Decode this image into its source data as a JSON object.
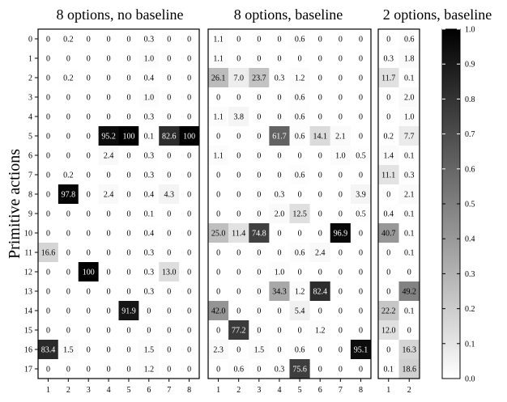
{
  "chart_data": {
    "type": "heatmap",
    "ylabel": "Primitive actions",
    "row_labels": [
      "0",
      "1",
      "2",
      "3",
      "4",
      "5",
      "6",
      "7",
      "8",
      "9",
      "10",
      "11",
      "12",
      "13",
      "14",
      "15",
      "16",
      "17"
    ],
    "colorbar": {
      "min": 0.0,
      "max": 1.0,
      "ticks": [
        "0.0",
        "0.1",
        "0.2",
        "0.3",
        "0.4",
        "0.5",
        "0.6",
        "0.7",
        "0.8",
        "0.9",
        "1.0"
      ],
      "colormap": "white-to-black"
    },
    "panels": [
      {
        "title": "8 options, no baseline",
        "columns": [
          "1",
          "2",
          "3",
          "4",
          "5",
          "6",
          "7",
          "8"
        ],
        "values": [
          [
            "0",
            "0.2",
            "0",
            "0",
            "0",
            "0.3",
            "0",
            "0"
          ],
          [
            "0",
            "0",
            "0",
            "0",
            "0",
            "1.0",
            "0",
            "0"
          ],
          [
            "0",
            "0.2",
            "0",
            "0",
            "0",
            "0.4",
            "0",
            "0"
          ],
          [
            "0",
            "0",
            "0",
            "0",
            "0",
            "1.0",
            "0",
            "0"
          ],
          [
            "0",
            "0",
            "0",
            "0",
            "0",
            "0.3",
            "0",
            "0"
          ],
          [
            "0",
            "0",
            "0",
            "95.2",
            "100",
            "0.1",
            "82.6",
            "100"
          ],
          [
            "0",
            "0",
            "0",
            "2.4",
            "0",
            "0.3",
            "0",
            "0"
          ],
          [
            "0",
            "0.2",
            "0",
            "0",
            "0",
            "0.3",
            "0",
            "0"
          ],
          [
            "0",
            "97.8",
            "0",
            "2.4",
            "0",
            "0.4",
            "4.3",
            "0"
          ],
          [
            "0",
            "0",
            "0",
            "0",
            "0",
            "0.1",
            "0",
            "0"
          ],
          [
            "0",
            "0",
            "0",
            "0",
            "0",
            "0.4",
            "0",
            "0"
          ],
          [
            "16.6",
            "0",
            "0",
            "0",
            "0",
            "0.3",
            "0",
            "0"
          ],
          [
            "0",
            "0",
            "100",
            "0",
            "0",
            "0.3",
            "13.0",
            "0"
          ],
          [
            "0",
            "0",
            "0",
            "0",
            "0",
            "0.3",
            "0",
            "0"
          ],
          [
            "0",
            "0",
            "0",
            "0",
            "91.9",
            "0",
            "0",
            "0"
          ],
          [
            "0",
            "0",
            "0",
            "0",
            "0",
            "0",
            "0",
            "0"
          ],
          [
            "83.4",
            "1.5",
            "0",
            "0",
            "0",
            "1.5",
            "0",
            "0"
          ],
          [
            "0",
            "0",
            "0",
            "0",
            "0",
            "1.2",
            "0",
            "0"
          ]
        ]
      },
      {
        "title": "8 options, baseline",
        "columns": [
          "1",
          "2",
          "3",
          "4",
          "5",
          "6",
          "7",
          "8"
        ],
        "values": [
          [
            "1.1",
            "0",
            "0",
            "0",
            "0.6",
            "0",
            "0",
            "0"
          ],
          [
            "1.1",
            "0",
            "0",
            "0",
            "0",
            "0",
            "0",
            "0"
          ],
          [
            "26.1",
            "7.0",
            "23.7",
            "0.3",
            "1.2",
            "0",
            "0",
            "0"
          ],
          [
            "0",
            "0",
            "0",
            "0",
            "0.6",
            "0",
            "0",
            "0"
          ],
          [
            "1.1",
            "3.8",
            "0",
            "0",
            "0.6",
            "0",
            "0",
            "0"
          ],
          [
            "0",
            "0",
            "0",
            "61.7",
            "0.6",
            "14.1",
            "2.1",
            "0"
          ],
          [
            "1.1",
            "0",
            "0",
            "0",
            "0",
            "0",
            "1.0",
            "0.5"
          ],
          [
            "0",
            "0",
            "0",
            "0",
            "0.6",
            "0",
            "0",
            "0"
          ],
          [
            "0",
            "0",
            "0",
            "0.3",
            "0",
            "0",
            "0",
            "3.9"
          ],
          [
            "0",
            "0",
            "0",
            "2.0",
            "12.5",
            "0",
            "0",
            "0.5"
          ],
          [
            "25.0",
            "11.4",
            "74.8",
            "0",
            "0",
            "0",
            "96.9",
            "0"
          ],
          [
            "0",
            "0",
            "0",
            "0",
            "0.6",
            "2.4",
            "0",
            "0"
          ],
          [
            "0",
            "0",
            "0",
            "1.0",
            "0",
            "0",
            "0",
            "0"
          ],
          [
            "0",
            "0",
            "0",
            "34.3",
            "1.2",
            "82.4",
            "0",
            "0"
          ],
          [
            "42.0",
            "0",
            "0",
            "0",
            "5.4",
            "0",
            "0",
            "0"
          ],
          [
            "0",
            "77.2",
            "0",
            "0",
            "0",
            "1.2",
            "0",
            "0"
          ],
          [
            "2.3",
            "0",
            "1.5",
            "0",
            "0.6",
            "0",
            "0",
            "95.1"
          ],
          [
            "0",
            "0.6",
            "0",
            "0.3",
            "75.6",
            "0",
            "0",
            "0"
          ]
        ]
      },
      {
        "title": "2 options, baseline",
        "columns": [
          "1",
          "2"
        ],
        "values": [
          [
            "0",
            "0.6"
          ],
          [
            "0.3",
            "1.8"
          ],
          [
            "11.7",
            "0.1"
          ],
          [
            "0",
            "2.0"
          ],
          [
            "0",
            "1.0"
          ],
          [
            "0.2",
            "7.7"
          ],
          [
            "1.4",
            "0.1"
          ],
          [
            "11.1",
            "0.3"
          ],
          [
            "0",
            "2.1"
          ],
          [
            "0.4",
            "0.1"
          ],
          [
            "40.7",
            "0.1"
          ],
          [
            "0",
            "0.1"
          ],
          [
            "0",
            "0"
          ],
          [
            "0",
            "49.2"
          ],
          [
            "22.2",
            "0.1"
          ],
          [
            "12.0",
            "0"
          ],
          [
            "0",
            "16.3"
          ],
          [
            "0.1",
            "18.6"
          ]
        ]
      }
    ]
  }
}
